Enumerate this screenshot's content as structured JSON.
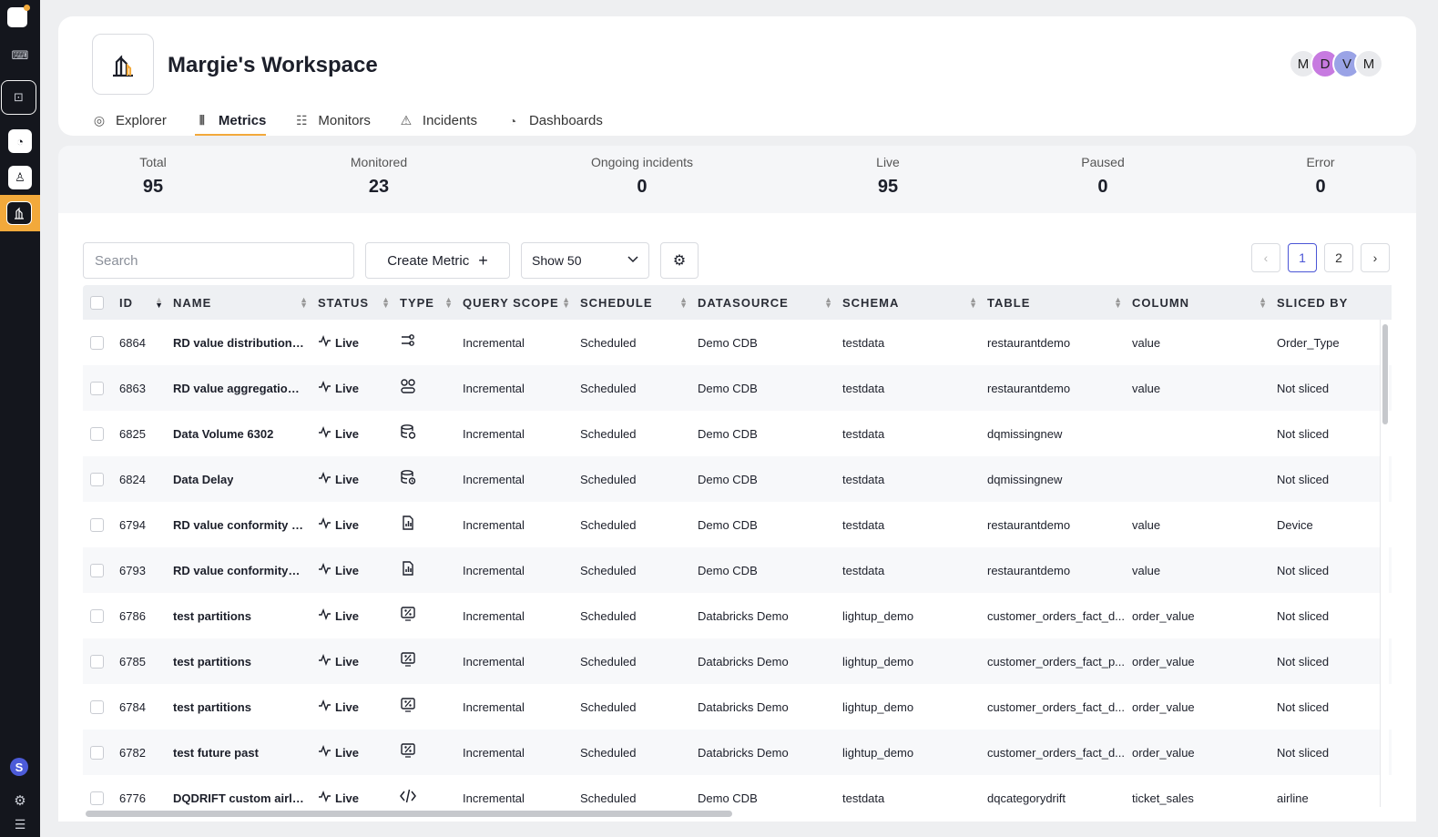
{
  "workspace": {
    "title": "Margie's Workspace"
  },
  "avatars": [
    {
      "initial": "M",
      "color": "#e9eaed",
      "text": "#222"
    },
    {
      "initial": "D",
      "color": "#c77ae0",
      "text": "#222"
    },
    {
      "initial": "V",
      "color": "#9aa3e6",
      "text": "#222"
    },
    {
      "initial": "M",
      "color": "#e9eaed",
      "text": "#222"
    }
  ],
  "tabs": [
    {
      "label": "Explorer",
      "icon": "target-icon",
      "active": false
    },
    {
      "label": "Metrics",
      "icon": "metrics-icon",
      "active": true
    },
    {
      "label": "Monitors",
      "icon": "list-icon",
      "active": false
    },
    {
      "label": "Incidents",
      "icon": "warning-icon",
      "active": false
    },
    {
      "label": "Dashboards",
      "icon": "gauge-icon",
      "active": false
    }
  ],
  "stats": [
    {
      "label": "Total",
      "value": "95"
    },
    {
      "label": "Monitored",
      "value": "23"
    },
    {
      "label": "Ongoing incidents",
      "value": "0"
    },
    {
      "label": "Live",
      "value": "95"
    },
    {
      "label": "Paused",
      "value": "0"
    },
    {
      "label": "Error",
      "value": "0"
    }
  ],
  "toolbar": {
    "search_placeholder": "Search",
    "create_label": "Create Metric",
    "show_label": "Show 50"
  },
  "pager": {
    "pages": [
      "1",
      "2"
    ],
    "current": "1"
  },
  "table": {
    "headers": [
      "ID",
      "NAME",
      "STATUS",
      "TYPE",
      "QUERY SCOPE",
      "SCHEDULE",
      "DATASOURCE",
      "SCHEMA",
      "TABLE",
      "COLUMN",
      "SLICED BY"
    ],
    "rows": [
      {
        "id": "6864",
        "name": "RD value distribution sli...",
        "status": "Live",
        "type_icon": "distribution-icon",
        "scope": "Incremental",
        "schedule": "Scheduled",
        "datasource": "Demo CDB",
        "schema": "testdata",
        "table": "restaurantdemo",
        "column": "value",
        "sliced": "Order_Type"
      },
      {
        "id": "6863",
        "name": "RD value aggregation d...",
        "status": "Live",
        "type_icon": "aggregation-icon",
        "scope": "Incremental",
        "schedule": "Scheduled",
        "datasource": "Demo CDB",
        "schema": "testdata",
        "table": "restaurantdemo",
        "column": "value",
        "sliced": "Not sliced"
      },
      {
        "id": "6825",
        "name": "Data Volume 6302",
        "status": "Live",
        "type_icon": "database-volume-icon",
        "scope": "Incremental",
        "schedule": "Scheduled",
        "datasource": "Demo CDB",
        "schema": "testdata",
        "table": "dqmissingnew",
        "column": "",
        "sliced": "Not sliced"
      },
      {
        "id": "6824",
        "name": "Data Delay",
        "status": "Live",
        "type_icon": "database-delay-icon",
        "scope": "Incremental",
        "schedule": "Scheduled",
        "datasource": "Demo CDB",
        "schema": "testdata",
        "table": "dqmissingnew",
        "column": "",
        "sliced": "Not sliced"
      },
      {
        "id": "6794",
        "name": "RD value conformity slic...",
        "status": "Live",
        "type_icon": "conformity-icon",
        "scope": "Incremental",
        "schedule": "Scheduled",
        "datasource": "Demo CDB",
        "schema": "testdata",
        "table": "restaurantdemo",
        "column": "value",
        "sliced": "Device"
      },
      {
        "id": "6793",
        "name": "RD value conformity_Cl...",
        "status": "Live",
        "type_icon": "conformity-icon",
        "scope": "Incremental",
        "schedule": "Scheduled",
        "datasource": "Demo CDB",
        "schema": "testdata",
        "table": "restaurantdemo",
        "column": "value",
        "sliced": "Not sliced"
      },
      {
        "id": "6786",
        "name": "test partitions",
        "status": "Live",
        "type_icon": "percent-icon",
        "scope": "Incremental",
        "schedule": "Scheduled",
        "datasource": "Databricks Demo",
        "schema": "lightup_demo",
        "table": "customer_orders_fact_d...",
        "column": "order_value",
        "sliced": "Not sliced"
      },
      {
        "id": "6785",
        "name": "test partitions",
        "status": "Live",
        "type_icon": "percent-icon",
        "scope": "Incremental",
        "schedule": "Scheduled",
        "datasource": "Databricks Demo",
        "schema": "lightup_demo",
        "table": "customer_orders_fact_p...",
        "column": "order_value",
        "sliced": "Not sliced"
      },
      {
        "id": "6784",
        "name": "test partitions",
        "status": "Live",
        "type_icon": "percent-icon",
        "scope": "Incremental",
        "schedule": "Scheduled",
        "datasource": "Databricks Demo",
        "schema": "lightup_demo",
        "table": "customer_orders_fact_d...",
        "column": "order_value",
        "sliced": "Not sliced"
      },
      {
        "id": "6782",
        "name": "test future past",
        "status": "Live",
        "type_icon": "percent-icon",
        "scope": "Incremental",
        "schedule": "Scheduled",
        "datasource": "Databricks Demo",
        "schema": "lightup_demo",
        "table": "customer_orders_fact_d...",
        "column": "order_value",
        "sliced": "Not sliced"
      },
      {
        "id": "6776",
        "name": "DQDRIFT custom airline...",
        "status": "Live",
        "type_icon": "code-icon",
        "scope": "Incremental",
        "schedule": "Scheduled",
        "datasource": "Demo CDB",
        "schema": "testdata",
        "table": "dqcategorydrift",
        "column": "ticket_sales",
        "sliced": "airline"
      }
    ]
  },
  "rail": {
    "help_initial": "S"
  },
  "colors": {
    "accent": "#f2a93b",
    "rail": "#14161d",
    "pager_active": "#4a55d6"
  }
}
